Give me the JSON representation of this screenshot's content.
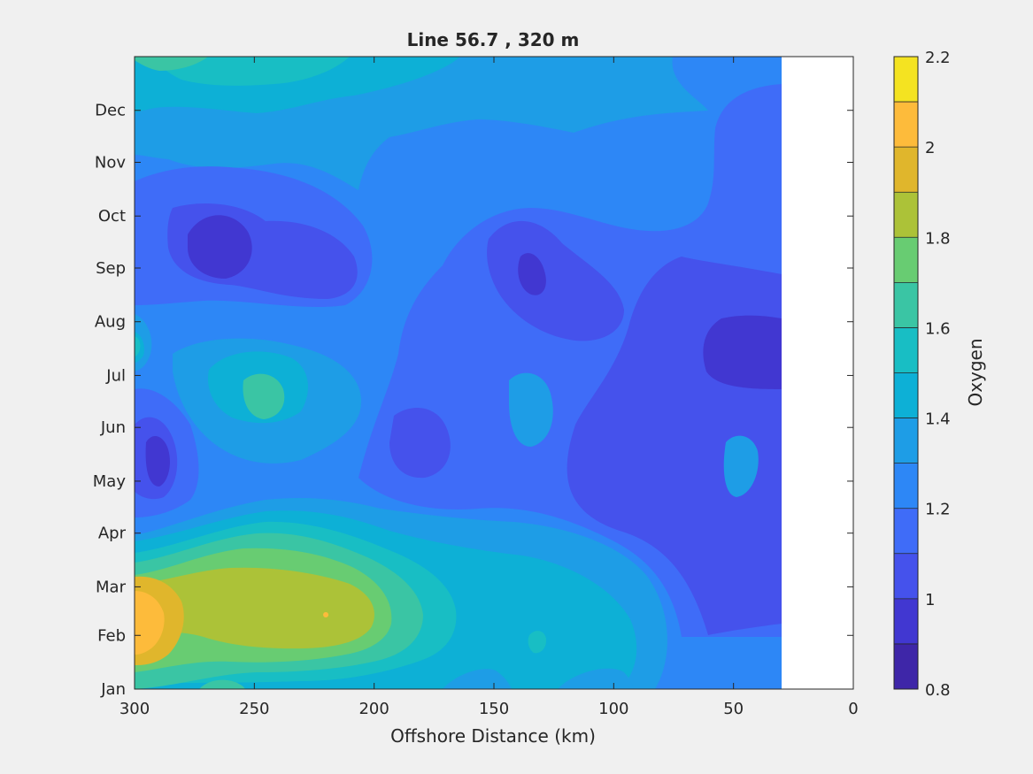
{
  "chart_data": {
    "type": "heatmap",
    "title": "Line 56.7 , 320 m",
    "xlabel": "Offshore Distance (km)",
    "ylabel": "",
    "colorbar_label": "Oxygen",
    "xlim": [
      300,
      0
    ],
    "x_ticks": [
      300,
      250,
      200,
      150,
      100,
      50,
      0
    ],
    "y_ticks": [
      "Jan",
      "Feb",
      "Mar",
      "Apr",
      "May",
      "Jun",
      "Jul",
      "Aug",
      "Sep",
      "Oct",
      "Nov",
      "Dec"
    ],
    "colorbar_range": [
      0.8,
      2.2
    ],
    "colorbar_ticks": [
      0.8,
      1,
      1.2,
      1.4,
      1.6,
      1.8,
      2,
      2.2
    ],
    "contour_levels": [
      0.8,
      0.9,
      1.0,
      1.1,
      1.2,
      1.3,
      1.4,
      1.5,
      1.6,
      1.7,
      1.8,
      1.9,
      2.0,
      2.1,
      2.2
    ],
    "level_colors": [
      "#3e26a8",
      "#4137d1",
      "#4552ec",
      "#3f6cf8",
      "#2d87f6",
      "#1e9de6",
      "#0db0d6",
      "#18bec4",
      "#3ac5a4",
      "#68cc72",
      "#acc238",
      "#e0b62c",
      "#fdbb3b",
      "#f4e321"
    ],
    "data_coverage_x": [
      300,
      30
    ],
    "features": [
      {
        "name": "Feb high near coast edge",
        "x": 295,
        "y": "Feb",
        "value": 2.05
      },
      {
        "name": "Feb-Mar tongue",
        "x": 240,
        "y": "Feb",
        "value": 1.85
      },
      {
        "name": "Sep low",
        "x": 265,
        "y": "Sep",
        "value": 0.95
      },
      {
        "name": "May low",
        "x": 290,
        "y": "May",
        "value": 0.95
      },
      {
        "name": "Jun-Jul mid high",
        "x": 245,
        "y": "Jul",
        "value": 1.65
      },
      {
        "name": "Aug-Jul offshore low",
        "x": 40,
        "y": "Aug",
        "value": 0.95
      },
      {
        "name": "Sep small low",
        "x": 135,
        "y": "Sep",
        "value": 0.95
      },
      {
        "name": "Top band",
        "x": 250,
        "y": "Dec",
        "value": 1.6
      }
    ]
  }
}
